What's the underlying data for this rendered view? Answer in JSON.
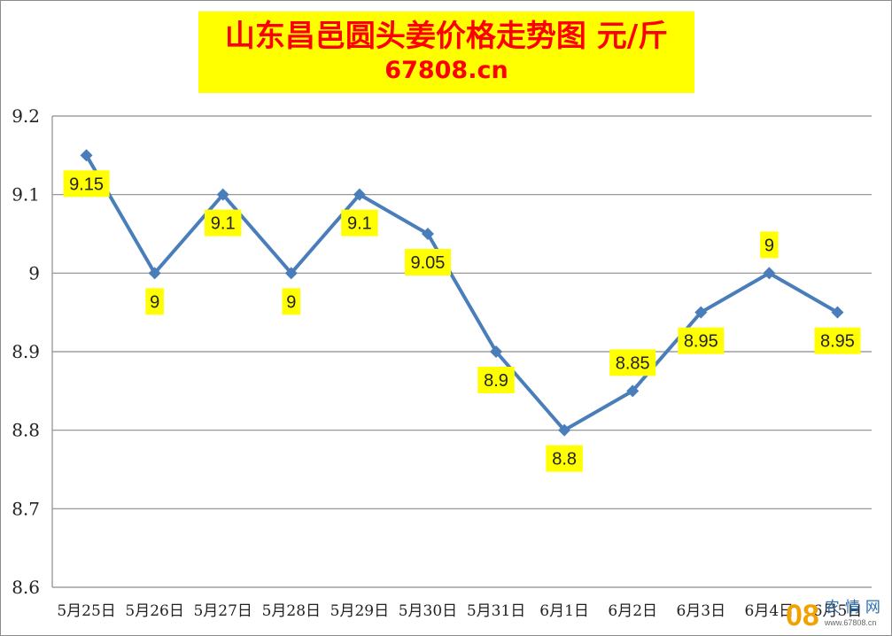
{
  "title": {
    "main": "山东昌邑圆头姜价格走势图 元/斤",
    "sub": "67808.cn"
  },
  "colors": {
    "line": "#4a7ebb",
    "title_bg": "#ffff00",
    "title_text": "#ff0000",
    "label_bg": "#ffff00",
    "grid": "#8c8c8c"
  },
  "chart_data": {
    "type": "line",
    "categories": [
      "5月25日",
      "5月26日",
      "5月27日",
      "5月28日",
      "5月29日",
      "5月30日",
      "5月31日",
      "6月1日",
      "6月2日",
      "6月3日",
      "6月4日",
      "6月5日"
    ],
    "series": [
      {
        "values": [
          9.15,
          9,
          9.1,
          9,
          9.1,
          9.05,
          8.9,
          8.8,
          8.85,
          8.95,
          9,
          8.95
        ],
        "data_labels": [
          "9.15",
          "9",
          "9.1",
          "9",
          "9.1",
          "9.05",
          "8.9",
          "8.8",
          "8.85",
          "8.95",
          "9",
          "8.95"
        ],
        "label_placement": [
          "below",
          "below",
          "below",
          "below",
          "below",
          "below",
          "below",
          "below",
          "above",
          "below",
          "above",
          "below"
        ],
        "marker": "diamond"
      }
    ],
    "ylim": [
      8.6,
      9.2
    ],
    "yticks": [
      "9.2",
      "9.1",
      "9",
      "8.9",
      "8.8",
      "8.7",
      "8.6"
    ],
    "grid": true,
    "legend": "none"
  },
  "watermark": {
    "mark": "08",
    "text": "农情网",
    "url": "www.67808.cn"
  }
}
